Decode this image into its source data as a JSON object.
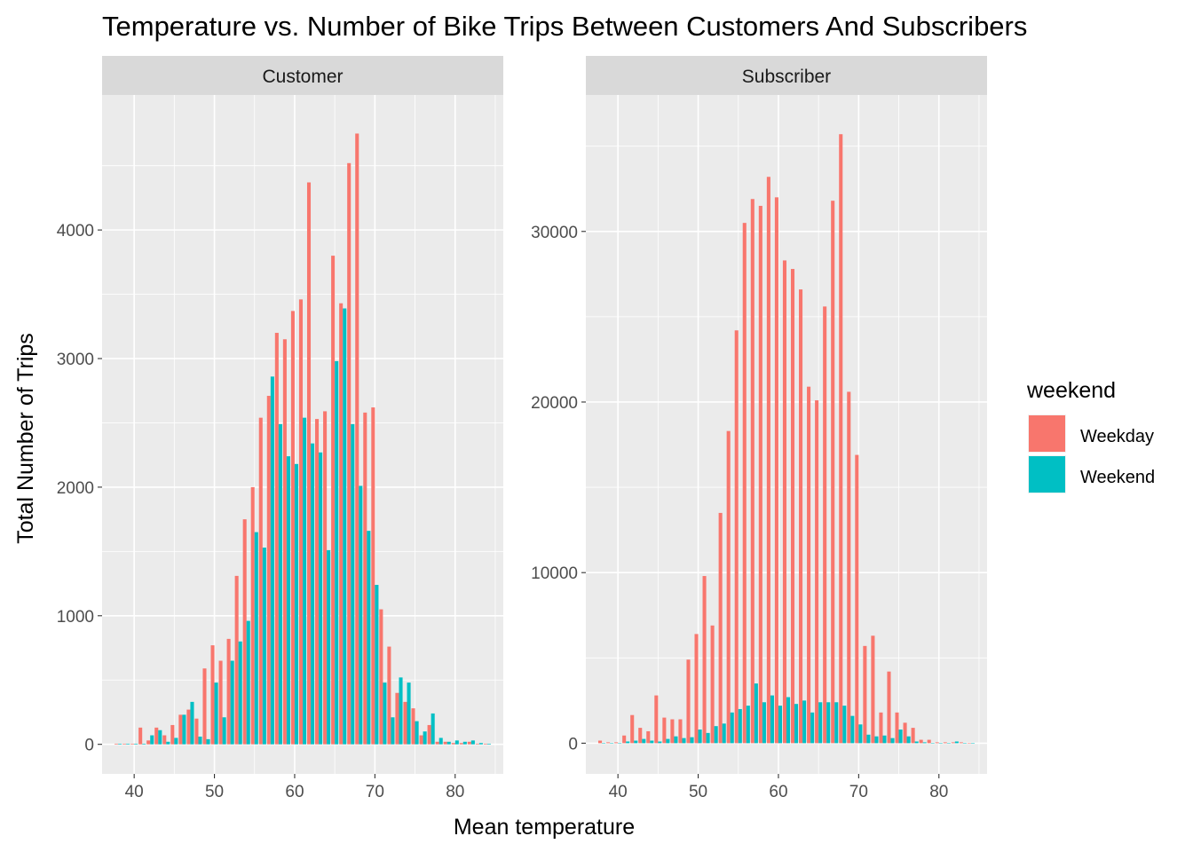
{
  "chart_data": [
    {
      "type": "bar",
      "facet": "Customer",
      "title": "Temperature vs. Number of Bike Trips Between Customers And Subscribers",
      "xlabel": "Mean temperature",
      "ylabel": "Total Number of Trips",
      "xlim": [
        36,
        86
      ],
      "ylim": [
        -230,
        5050
      ],
      "xticks": [
        40,
        50,
        60,
        70,
        80
      ],
      "yticks": [
        0,
        1000,
        2000,
        3000,
        4000
      ],
      "grid": true,
      "legend_placement": "right",
      "series": [
        {
          "name": "Weekday",
          "color": "#F8766D",
          "x": [
            38,
            39,
            40,
            41,
            42,
            43,
            44,
            45,
            46,
            47,
            48,
            49,
            50,
            51,
            52,
            53,
            54,
            55,
            56,
            57,
            58,
            59,
            60,
            61,
            62,
            63,
            64,
            65,
            66,
            67,
            68,
            69,
            70,
            71,
            72,
            73,
            74,
            75,
            76,
            77,
            78,
            79,
            80,
            81,
            82,
            83,
            84
          ],
          "values": [
            5,
            5,
            5,
            130,
            30,
            130,
            70,
            150,
            230,
            270,
            200,
            590,
            770,
            650,
            820,
            1310,
            1750,
            2000,
            2540,
            2710,
            3200,
            3150,
            3370,
            3460,
            4370,
            2530,
            2590,
            3800,
            3430,
            4520,
            4750,
            2580,
            2620,
            1050,
            760,
            400,
            330,
            280,
            70,
            150,
            20,
            20,
            10,
            10,
            20,
            5,
            5
          ]
        },
        {
          "name": "Weekend",
          "color": "#00BFC4",
          "x": [
            38,
            39,
            40,
            41,
            42,
            43,
            44,
            45,
            46,
            47,
            48,
            49,
            50,
            51,
            52,
            53,
            54,
            55,
            56,
            57,
            58,
            59,
            60,
            61,
            62,
            63,
            64,
            65,
            66,
            67,
            68,
            69,
            70,
            71,
            72,
            73,
            74,
            75,
            76,
            77,
            78,
            79,
            80,
            81,
            82,
            83,
            84
          ],
          "values": [
            5,
            5,
            5,
            5,
            70,
            110,
            20,
            50,
            230,
            330,
            60,
            40,
            480,
            210,
            650,
            800,
            960,
            1650,
            1530,
            2860,
            2490,
            2240,
            2180,
            2540,
            2340,
            2270,
            1510,
            2980,
            3390,
            2490,
            2010,
            1660,
            1240,
            480,
            210,
            520,
            480,
            180,
            100,
            240,
            50,
            20,
            30,
            20,
            30,
            10,
            5
          ]
        }
      ]
    },
    {
      "type": "bar",
      "facet": "Subscriber",
      "xlabel": "Mean temperature",
      "ylabel": "Total Number of Trips",
      "xlim": [
        36,
        86
      ],
      "ylim": [
        -1800,
        38000
      ],
      "xticks": [
        40,
        50,
        60,
        70,
        80
      ],
      "yticks": [
        0,
        10000,
        20000,
        30000
      ],
      "grid": true,
      "legend_placement": "right",
      "series": [
        {
          "name": "Weekday",
          "color": "#F8766D",
          "x": [
            38,
            39,
            40,
            41,
            42,
            43,
            44,
            45,
            46,
            47,
            48,
            49,
            50,
            51,
            52,
            53,
            54,
            55,
            56,
            57,
            58,
            59,
            60,
            61,
            62,
            63,
            64,
            65,
            66,
            67,
            68,
            69,
            70,
            71,
            72,
            73,
            74,
            75,
            76,
            77,
            78,
            79,
            80,
            81,
            82,
            83,
            84
          ],
          "values": [
            150,
            50,
            50,
            450,
            1650,
            900,
            700,
            2800,
            1500,
            1400,
            1400,
            4900,
            6400,
            9800,
            6900,
            13500,
            18300,
            24200,
            30500,
            31900,
            31500,
            33200,
            32000,
            28300,
            27800,
            26600,
            20900,
            20100,
            25600,
            31800,
            35700,
            20600,
            16900,
            5700,
            6300,
            1800,
            4200,
            1800,
            1200,
            900,
            200,
            200,
            50,
            50,
            50,
            50,
            20
          ]
        },
        {
          "name": "Weekend",
          "color": "#00BFC4",
          "x": [
            38,
            39,
            40,
            41,
            42,
            43,
            44,
            45,
            46,
            47,
            48,
            49,
            50,
            51,
            52,
            53,
            54,
            55,
            56,
            57,
            58,
            59,
            60,
            61,
            62,
            63,
            64,
            65,
            66,
            67,
            68,
            69,
            70,
            71,
            72,
            73,
            74,
            75,
            76,
            77,
            78,
            79,
            80,
            81,
            82,
            83,
            84
          ],
          "values": [
            20,
            20,
            20,
            100,
            150,
            250,
            150,
            100,
            250,
            400,
            300,
            350,
            800,
            600,
            1000,
            1150,
            1800,
            2000,
            2200,
            3500,
            2400,
            2800,
            2200,
            2700,
            2300,
            2500,
            1800,
            2400,
            2400,
            2400,
            2200,
            1600,
            1100,
            500,
            400,
            450,
            300,
            800,
            400,
            100,
            50,
            20,
            20,
            20,
            100,
            20,
            20
          ]
        }
      ]
    }
  ],
  "legend": {
    "title": "weekend",
    "items": [
      {
        "label": "Weekday",
        "color": "#F8766D"
      },
      {
        "label": "Weekend",
        "color": "#00BFC4"
      }
    ]
  }
}
